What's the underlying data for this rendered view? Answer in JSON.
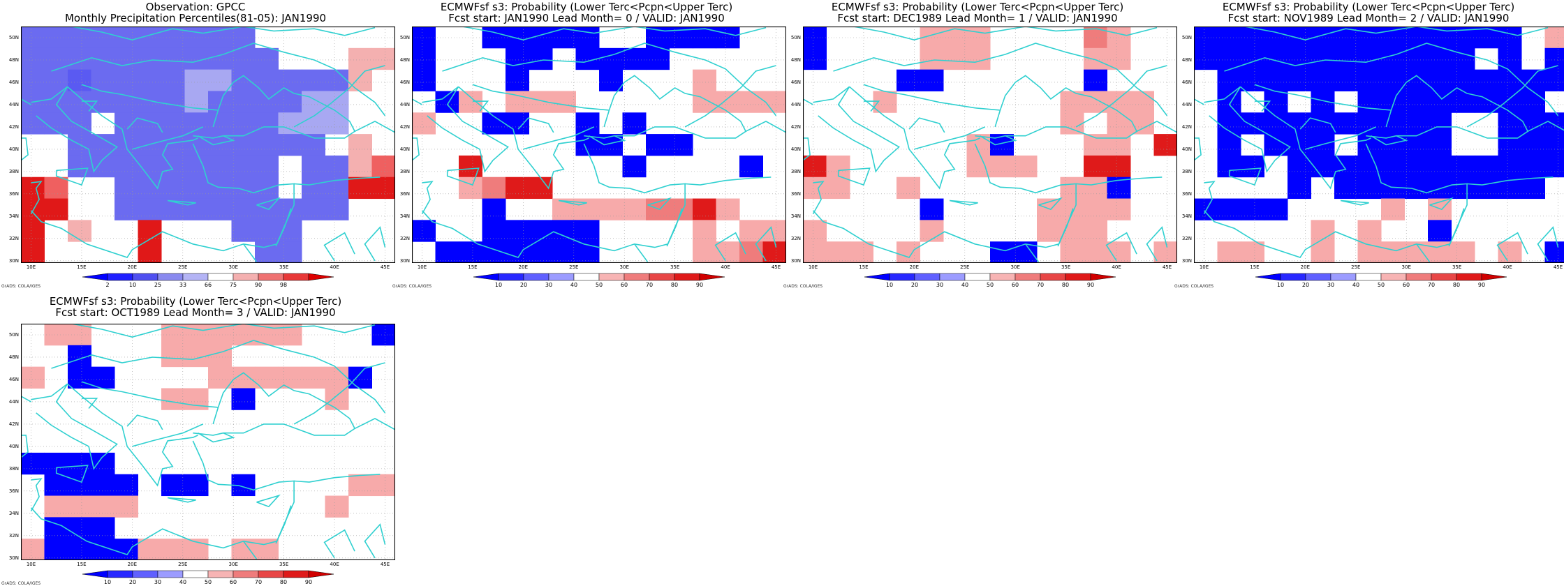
{
  "panels": [
    {
      "id": "obs",
      "title1": "Observation: GPCC",
      "title2": "Monthly Precipitation Percentiles(81-05): JAN1990",
      "legend_labels": [
        "2",
        "10",
        "25",
        "33",
        "66",
        "75",
        "90",
        "98"
      ],
      "legend_colors": [
        "#0000ff",
        "#2020ff",
        "#5050f0",
        "#8a8aef",
        "#b4b4f5",
        "#ffffff",
        "#f4b0b0",
        "#ef7272",
        "#e83838",
        "#dd0000"
      ]
    },
    {
      "id": "lead0",
      "title1": "ECMWFsf s3: Probability (Lower Terc<Pcpn<Upper Terc)",
      "title2": "Fcst start: JAN1990   Lead Month= 0 / VALID: JAN1990",
      "legend_labels": [
        "10",
        "20",
        "30",
        "40",
        "50",
        "60",
        "70",
        "80",
        "90"
      ],
      "legend_colors": [
        "#0000ff",
        "#2828ff",
        "#6060ff",
        "#9c9cff",
        "#ffffff",
        "#f7b4b4",
        "#ef7c7c",
        "#e84646",
        "#df1a1a",
        "#d00000"
      ]
    },
    {
      "id": "lead1",
      "title1": "ECMWFsf s3: Probability (Lower Terc<Pcpn<Upper Terc)",
      "title2": "Fcst start: DEC1989   Lead Month= 1 / VALID: JAN1990",
      "legend_labels": [
        "10",
        "20",
        "30",
        "40",
        "50",
        "60",
        "70",
        "80",
        "90"
      ],
      "legend_colors": [
        "#0000ff",
        "#2828ff",
        "#6060ff",
        "#9c9cff",
        "#ffffff",
        "#f7b4b4",
        "#ef7c7c",
        "#e84646",
        "#df1a1a",
        "#d00000"
      ]
    },
    {
      "id": "lead2",
      "title1": "ECMWFsf s3: Probability (Lower Terc<Pcpn<Upper Terc)",
      "title2": "Fcst start: NOV1989   Lead Month= 2 / VALID: JAN1990",
      "legend_labels": [
        "10",
        "20",
        "30",
        "40",
        "50",
        "60",
        "70",
        "80",
        "90"
      ],
      "legend_colors": [
        "#0000ff",
        "#2828ff",
        "#6060ff",
        "#9c9cff",
        "#ffffff",
        "#f7b4b4",
        "#ef7c7c",
        "#e84646",
        "#df1a1a",
        "#d00000"
      ]
    },
    {
      "id": "lead3",
      "title1": "ECMWFsf s3: Probability (Lower Terc<Pcpn<Upper Terc)",
      "title2": "Fcst start: OCT1989   Lead Month= 3 / VALID: JAN1990",
      "legend_labels": [
        "10",
        "20",
        "30",
        "40",
        "50",
        "60",
        "70",
        "80",
        "90"
      ],
      "legend_colors": [
        "#0000ff",
        "#2828ff",
        "#6060ff",
        "#9c9cff",
        "#ffffff",
        "#f7b4b4",
        "#ef7c7c",
        "#e84646",
        "#df1a1a",
        "#d00000"
      ]
    }
  ],
  "lat_labels": [
    "50N",
    "48N",
    "46N",
    "44N",
    "42N",
    "40N",
    "38N",
    "36N",
    "34N",
    "32N",
    "30N"
  ],
  "lon_labels": [
    "10E",
    "15E",
    "20E",
    "25E",
    "30E",
    "35E",
    "40E",
    "45E"
  ],
  "credit": "GrADS: COLA/IGES",
  "coast_color": "#30d0d0",
  "grids": {
    "obs": [
      "1111111111777777",
      "1111111111177755",
      "1101111331111157",
      "1111111311113377",
      "1117111111133377",
      "7711111111111767",
      "7711111111171168",
      "9877111111171199",
      "9977111111111177",
      "9767797771117777",
      "9777797777117777"
    ],
    "lead0": [
      "0440000044000044",
      "0444004000044444",
      "0444044404446444",
      "4064666444446666",
      "6440044040444444",
      "4444444004004444",
      "4484444440444404",
      "4467884444444444",
      "4440446666778644",
      "0440000044446466",
      "4000000044446678"
    ],
    "lead1": [
      "0444466644447644",
      "0444466644446644",
      "4444004444440444",
      "4446444444466664",
      "4444444444464664",
      "4444444604446648",
      "8644444666448844",
      "6644644444466044",
      "4444404444666644",
      "6444464444666444",
      "6664644400466646"
    ],
    "lead2": [
      "0000000000000046",
      "0000000000004040",
      "4000000000000000",
      "4040404000000004",
      "4000000000044000",
      "4040004000044000",
      "4004000000000000",
      "4444040000000004",
      "0000444464644444",
      "4444464644044444",
      "4664464666664640"
    ],
    "lead3": [
      "4664446666664440",
      "4404446664444444",
      "6400444466666604",
      "4444446640444644",
      "4444444444444444",
      "4444444444444444",
      "0000444444444444",
      "4000040040444466",
      "4666644444444644",
      "4000444444444444",
      "6000066646644444"
    ]
  }
}
